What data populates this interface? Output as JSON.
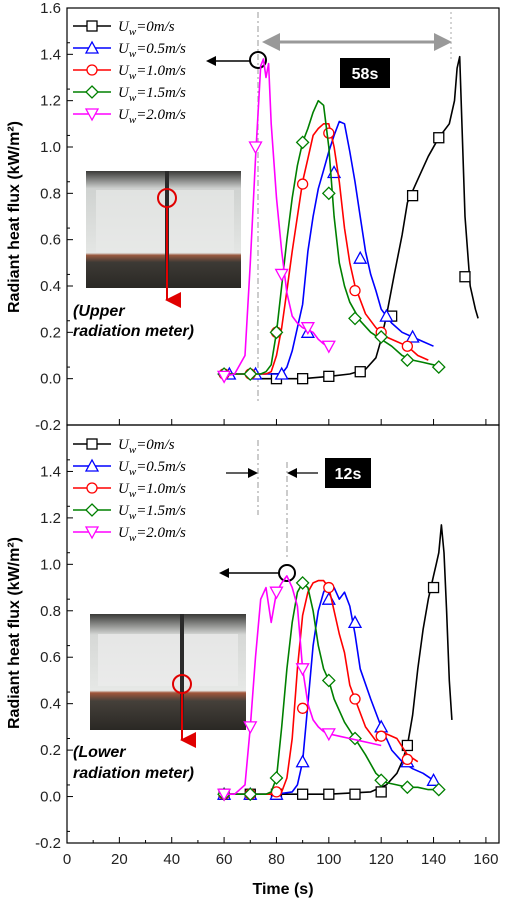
{
  "figure": {
    "y_axis_label": "Radiant heat flux (kW/m²)",
    "x_axis_label": "Time (s)",
    "x_ticks": [
      "0",
      "20",
      "40",
      "60",
      "80",
      "100",
      "120",
      "140",
      "160"
    ],
    "y_ticks_top": [
      "0.0",
      "0.2",
      "0.4",
      "0.6",
      "0.8",
      "1.0",
      "1.2",
      "1.4",
      "1.6"
    ],
    "y_ticks_bottom": [
      "-0.2",
      "0.0",
      "0.2",
      "0.4",
      "0.6",
      "0.8",
      "1.0",
      "1.2",
      "1.4"
    ],
    "overlap_tick": "-0.2"
  },
  "chart_data": [
    {
      "type": "line",
      "panel": "upper",
      "xlabel": "Time (s)",
      "ylabel": "Radiant heat flux (kW/m²)",
      "xlim": [
        0,
        165
      ],
      "ylim": [
        -0.2,
        1.6
      ],
      "legend_position": "top-left",
      "inset_label": [
        "(Upper",
        "radiation meter)"
      ],
      "annotation": "58s",
      "colors": [
        "#000000",
        "#0000ff",
        "#ff0000",
        "#008000",
        "#ff00ff"
      ],
      "markers": [
        "square",
        "triangle-up",
        "circle",
        "diamond",
        "triangle-down"
      ],
      "series": [
        {
          "name": "U_w=0m/s",
          "label_main": "U",
          "label_sub": "w",
          "label_rest": "=0m/s",
          "x": [
            74,
            80,
            90,
            100,
            108,
            114,
            118,
            120,
            122,
            125,
            128,
            130,
            134,
            138,
            142,
            146,
            148,
            149,
            150,
            152,
            154,
            156,
            157
          ],
          "y": [
            0.0,
            0.0,
            0.0,
            0.01,
            0.02,
            0.04,
            0.09,
            0.17,
            0.27,
            0.45,
            0.62,
            0.76,
            0.86,
            0.96,
            1.04,
            1.1,
            1.2,
            1.34,
            1.39,
            0.7,
            0.4,
            0.3,
            0.26
          ],
          "mx": [
            80,
            90,
            100,
            112,
            124,
            132,
            142,
            152
          ],
          "my": [
            0.0,
            0.0,
            0.01,
            0.03,
            0.27,
            0.79,
            1.04,
            0.44
          ]
        },
        {
          "name": "U_w=0.5m/s",
          "label_main": "U",
          "label_sub": "w",
          "label_rest": "=0.5m/s",
          "x": [
            60,
            66,
            70,
            74,
            78,
            80,
            82,
            84,
            86,
            88,
            90,
            92,
            94,
            96,
            98,
            100,
            102,
            104,
            106,
            108,
            110,
            112,
            114,
            116,
            118,
            120,
            124,
            128,
            132,
            136,
            140
          ],
          "y": [
            0.02,
            0.02,
            0.02,
            0.02,
            0.02,
            0.02,
            0.02,
            0.05,
            0.12,
            0.22,
            0.32,
            0.55,
            0.7,
            0.82,
            0.9,
            0.98,
            1.05,
            1.11,
            1.1,
            0.98,
            0.85,
            0.7,
            0.55,
            0.45,
            0.38,
            0.3,
            0.24,
            0.2,
            0.18,
            0.16,
            0.14
          ],
          "mx": [
            62,
            72,
            82,
            92,
            102,
            112,
            122,
            132
          ],
          "my": [
            0.02,
            0.02,
            0.02,
            0.2,
            0.89,
            0.52,
            0.27,
            0.18
          ]
        },
        {
          "name": "U_w=1.0m/s",
          "label_main": "U",
          "label_sub": "w",
          "label_rest": "=1.0m/s",
          "x": [
            60,
            70,
            76,
            78,
            80,
            82,
            84,
            86,
            88,
            90,
            92,
            94,
            96,
            98,
            100,
            102,
            104,
            106,
            108,
            110,
            114,
            118,
            122,
            126,
            130,
            134,
            138
          ],
          "y": [
            0.02,
            0.02,
            0.02,
            0.03,
            0.1,
            0.22,
            0.38,
            0.55,
            0.7,
            0.85,
            0.95,
            1.05,
            1.08,
            1.1,
            1.1,
            1.0,
            0.85,
            0.65,
            0.5,
            0.4,
            0.28,
            0.22,
            0.18,
            0.16,
            0.14,
            0.1,
            0.08
          ],
          "mx": [
            60,
            70,
            80,
            90,
            100,
            110,
            120,
            130
          ],
          "my": [
            0.02,
            0.02,
            0.2,
            0.84,
            1.06,
            0.38,
            0.2,
            0.14
          ]
        },
        {
          "name": "U_w=1.5m/s",
          "label_main": "U",
          "label_sub": "w",
          "label_rest": "=1.5m/s",
          "x": [
            60,
            70,
            74,
            76,
            78,
            80,
            82,
            84,
            86,
            88,
            90,
            92,
            94,
            96,
            98,
            100,
            102,
            104,
            106,
            108,
            112,
            116,
            120,
            124,
            128,
            132,
            136,
            140,
            143
          ],
          "y": [
            0.02,
            0.02,
            0.02,
            0.03,
            0.06,
            0.2,
            0.4,
            0.6,
            0.78,
            0.92,
            1.02,
            1.08,
            1.15,
            1.2,
            1.18,
            1.0,
            0.7,
            0.5,
            0.4,
            0.33,
            0.25,
            0.2,
            0.17,
            0.14,
            0.1,
            0.08,
            0.07,
            0.06,
            0.05
          ],
          "mx": [
            60,
            70,
            80,
            90,
            100,
            110,
            120,
            130,
            142
          ],
          "my": [
            0.02,
            0.02,
            0.2,
            1.02,
            0.8,
            0.26,
            0.18,
            0.08,
            0.05
          ]
        },
        {
          "name": "U_w=2.0m/s",
          "label_main": "U",
          "label_sub": "w",
          "label_rest": "=2.0m/s",
          "x": [
            60,
            64,
            68,
            70,
            72,
            73,
            74,
            75,
            76,
            77,
            78,
            80,
            82,
            84,
            86,
            88,
            90,
            92,
            94,
            96,
            98,
            100
          ],
          "y": [
            0.01,
            0.02,
            0.1,
            0.5,
            0.95,
            1.15,
            1.35,
            1.38,
            1.3,
            1.36,
            1.1,
            0.78,
            0.55,
            0.37,
            0.27,
            0.24,
            0.22,
            0.21,
            0.2,
            0.17,
            0.15,
            0.14
          ],
          "mx": [
            60,
            72,
            82,
            92,
            100
          ],
          "my": [
            0.01,
            1.0,
            0.45,
            0.22,
            0.14
          ]
        }
      ]
    },
    {
      "type": "line",
      "panel": "lower",
      "xlabel": "Time (s)",
      "ylabel": "Radiant heat flux (kW/m²)",
      "xlim": [
        0,
        165
      ],
      "ylim": [
        -0.2,
        1.6
      ],
      "legend_position": "top-left",
      "inset_label": [
        "(Lower",
        "radiation meter)"
      ],
      "annotation": "12s",
      "colors": [
        "#000000",
        "#0000ff",
        "#ff0000",
        "#008000",
        "#ff00ff"
      ],
      "markers": [
        "square",
        "triangle-up",
        "circle",
        "diamond",
        "triangle-down"
      ],
      "series": [
        {
          "name": "U_w=0m/s",
          "label_main": "U",
          "label_sub": "w",
          "label_rest": "=0m/s",
          "x": [
            60,
            80,
            100,
            116,
            122,
            126,
            128,
            130,
            132,
            134,
            136,
            138,
            140,
            141,
            142,
            143,
            144,
            145,
            146,
            147
          ],
          "y": [
            0.01,
            0.01,
            0.01,
            0.02,
            0.05,
            0.1,
            0.15,
            0.22,
            0.35,
            0.55,
            0.72,
            0.85,
            0.95,
            1.0,
            1.05,
            1.17,
            1.05,
            0.8,
            0.5,
            0.33
          ],
          "mx": [
            60,
            70,
            80,
            90,
            100,
            110,
            120,
            130,
            140
          ],
          "my": [
            0.01,
            0.01,
            0.01,
            0.01,
            0.01,
            0.01,
            0.02,
            0.22,
            0.9
          ]
        },
        {
          "name": "U_w=0.5m/s",
          "label_main": "U",
          "label_sub": "w",
          "label_rest": "=0.5m/s",
          "x": [
            60,
            70,
            80,
            86,
            88,
            90,
            92,
            94,
            96,
            98,
            100,
            102,
            104,
            106,
            108,
            110,
            112,
            116,
            120,
            124,
            128,
            132,
            136,
            140
          ],
          "y": [
            0.01,
            0.01,
            0.01,
            0.02,
            0.05,
            0.15,
            0.4,
            0.65,
            0.8,
            0.88,
            0.92,
            0.9,
            0.85,
            0.88,
            0.82,
            0.7,
            0.55,
            0.42,
            0.3,
            0.2,
            0.15,
            0.12,
            0.1,
            0.07
          ],
          "mx": [
            60,
            70,
            80,
            90,
            100,
            110,
            120,
            130,
            140
          ],
          "my": [
            0.01,
            0.01,
            0.01,
            0.15,
            0.85,
            0.75,
            0.3,
            0.15,
            0.07
          ]
        },
        {
          "name": "U_w=1.0m/s",
          "label_main": "U",
          "label_sub": "w",
          "label_rest": "=1.0m/s",
          "x": [
            60,
            70,
            80,
            82,
            84,
            86,
            88,
            90,
            92,
            94,
            96,
            98,
            100,
            102,
            104,
            106,
            108,
            110,
            114,
            118,
            122,
            126,
            130,
            134
          ],
          "y": [
            0.01,
            0.01,
            0.01,
            0.02,
            0.08,
            0.25,
            0.55,
            0.78,
            0.88,
            0.92,
            0.93,
            0.93,
            0.9,
            0.8,
            0.7,
            0.62,
            0.48,
            0.42,
            0.3,
            0.24,
            0.27,
            0.25,
            0.18,
            0.15
          ],
          "mx": [
            60,
            70,
            80,
            90,
            100,
            110,
            120,
            130
          ],
          "my": [
            0.01,
            0.01,
            0.02,
            0.38,
            0.9,
            0.42,
            0.26,
            0.16
          ]
        },
        {
          "name": "U_w=1.5m/s",
          "label_main": "U",
          "label_sub": "w",
          "label_rest": "=1.5m/s",
          "x": [
            60,
            70,
            76,
            78,
            80,
            82,
            84,
            86,
            88,
            90,
            92,
            94,
            96,
            98,
            100,
            102,
            106,
            110,
            114,
            118,
            122,
            126,
            130,
            134,
            138,
            142
          ],
          "y": [
            0.01,
            0.01,
            0.01,
            0.02,
            0.08,
            0.3,
            0.55,
            0.75,
            0.88,
            0.92,
            0.9,
            0.8,
            0.65,
            0.55,
            0.5,
            0.42,
            0.32,
            0.25,
            0.18,
            0.1,
            0.06,
            0.05,
            0.04,
            0.04,
            0.03,
            0.03
          ],
          "mx": [
            60,
            70,
            80,
            90,
            100,
            110,
            120,
            130,
            142
          ],
          "my": [
            0.01,
            0.01,
            0.08,
            0.92,
            0.5,
            0.25,
            0.07,
            0.04,
            0.03
          ]
        },
        {
          "name": "U_w=2.0m/s",
          "label_main": "U",
          "label_sub": "w",
          "label_rest": "=2.0m/s",
          "x": [
            60,
            64,
            68,
            70,
            72,
            74,
            76,
            78,
            80,
            82,
            84,
            86,
            88,
            90,
            92,
            94,
            96,
            98,
            100,
            104,
            108,
            112,
            116,
            120
          ],
          "y": [
            0.01,
            0.01,
            0.05,
            0.3,
            0.6,
            0.85,
            0.9,
            0.75,
            0.88,
            0.92,
            0.95,
            0.9,
            0.82,
            0.55,
            0.4,
            0.33,
            0.3,
            0.28,
            0.27,
            0.26,
            0.25,
            0.24,
            0.23,
            0.22
          ],
          "mx": [
            60,
            70,
            80,
            90,
            100
          ],
          "my": [
            0.01,
            0.3,
            0.88,
            0.55,
            0.27
          ]
        }
      ]
    }
  ]
}
